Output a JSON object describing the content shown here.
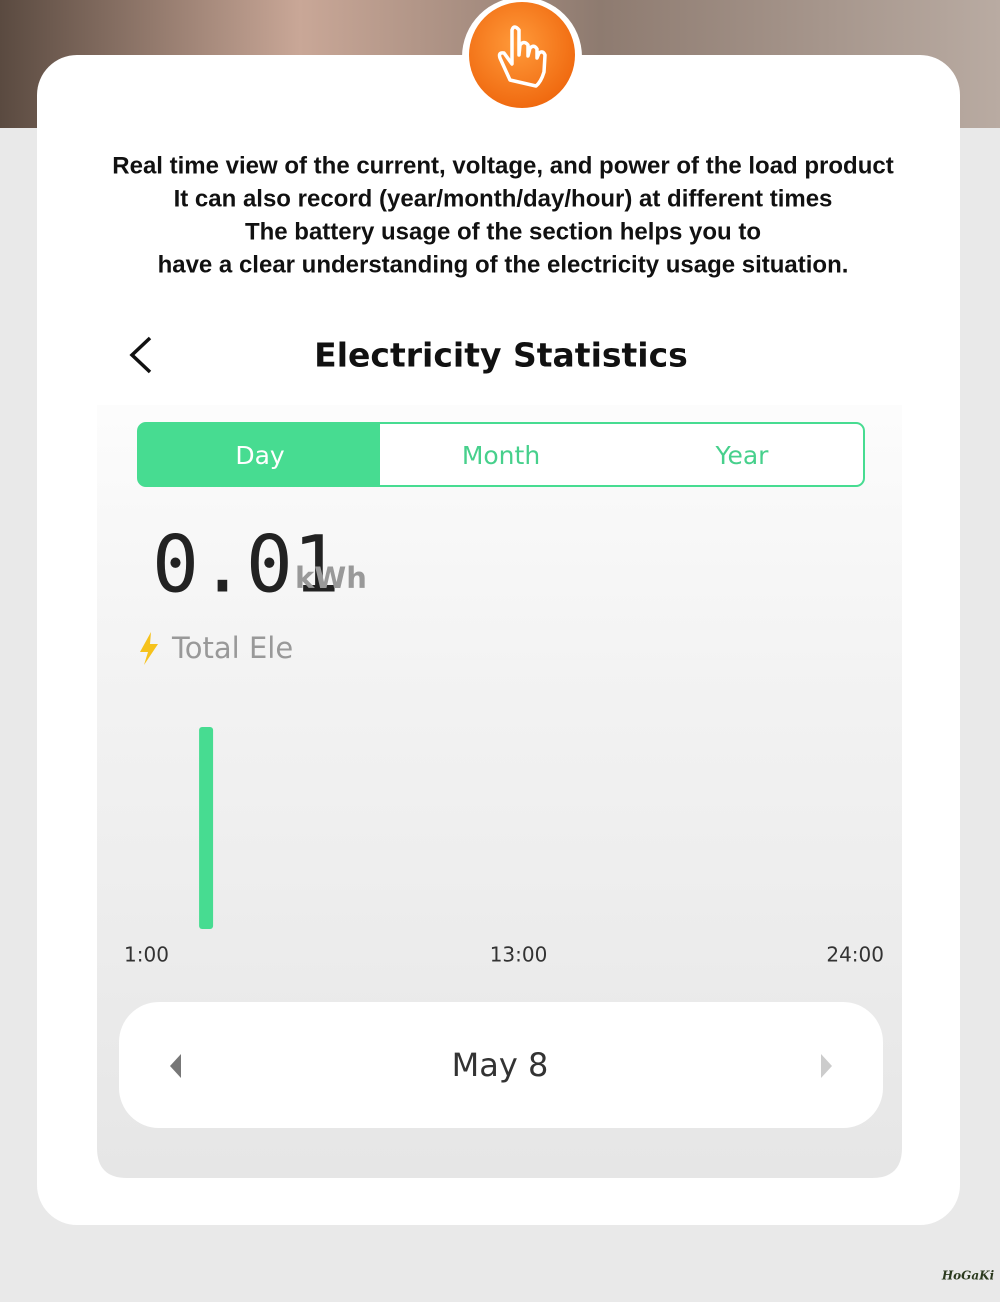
{
  "header": {
    "lines": [
      "Real time view of the current, voltage, and power of the load product",
      "It can also record (year/month/day/hour) at different times",
      "The battery usage of the section helps you to",
      "have a clear understanding of the electricity usage situation."
    ]
  },
  "app": {
    "title": "Electricity Statistics",
    "tabs": [
      "Day",
      "Month",
      "Year"
    ],
    "selected_tab": "Day",
    "total": {
      "value": "0.01",
      "unit": "kWh",
      "label": "Total Ele"
    },
    "date": "May 8"
  },
  "chart_data": {
    "type": "bar",
    "x": [
      3
    ],
    "values": [
      0.01
    ],
    "color": "#47dc91",
    "xlim": [
      1,
      24
    ],
    "xticks": [
      {
        "value": 1,
        "label": "1:00"
      },
      {
        "value": 13,
        "label": "13:00"
      },
      {
        "value": 24,
        "label": "24:00"
      }
    ]
  },
  "brand": "HoGaKi"
}
